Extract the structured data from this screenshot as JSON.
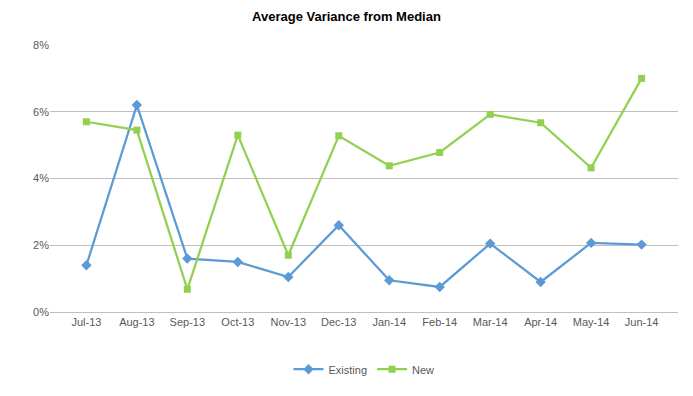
{
  "chart_data": {
    "type": "line",
    "title": "Average Variance from Median",
    "categories": [
      "Jul-13",
      "Aug-13",
      "Sep-13",
      "Oct-13",
      "Nov-13",
      "Dec-13",
      "Jan-14",
      "Feb-14",
      "Mar-14",
      "Apr-14",
      "May-14",
      "Jun-14"
    ],
    "series": [
      {
        "name": "Existing",
        "color": "#5b9bd5",
        "marker": "diamond",
        "values": [
          1.4,
          6.2,
          1.6,
          1.5,
          1.05,
          2.6,
          0.95,
          0.75,
          2.05,
          0.9,
          2.07,
          2.02
        ]
      },
      {
        "name": "New",
        "color": "#92d050",
        "marker": "square",
        "values": [
          5.7,
          5.45,
          0.68,
          5.3,
          1.7,
          5.28,
          4.38,
          4.78,
          5.92,
          5.67,
          4.32,
          7.0
        ]
      }
    ],
    "ylim": [
      0,
      8
    ],
    "yticks": [
      {
        "value": 0,
        "label": "0%"
      },
      {
        "value": 2,
        "label": "2%"
      },
      {
        "value": 4,
        "label": "4%"
      },
      {
        "value": 6,
        "label": "6%"
      },
      {
        "value": 8,
        "label": "8%"
      }
    ],
    "grid": true,
    "legend": "bottom"
  }
}
